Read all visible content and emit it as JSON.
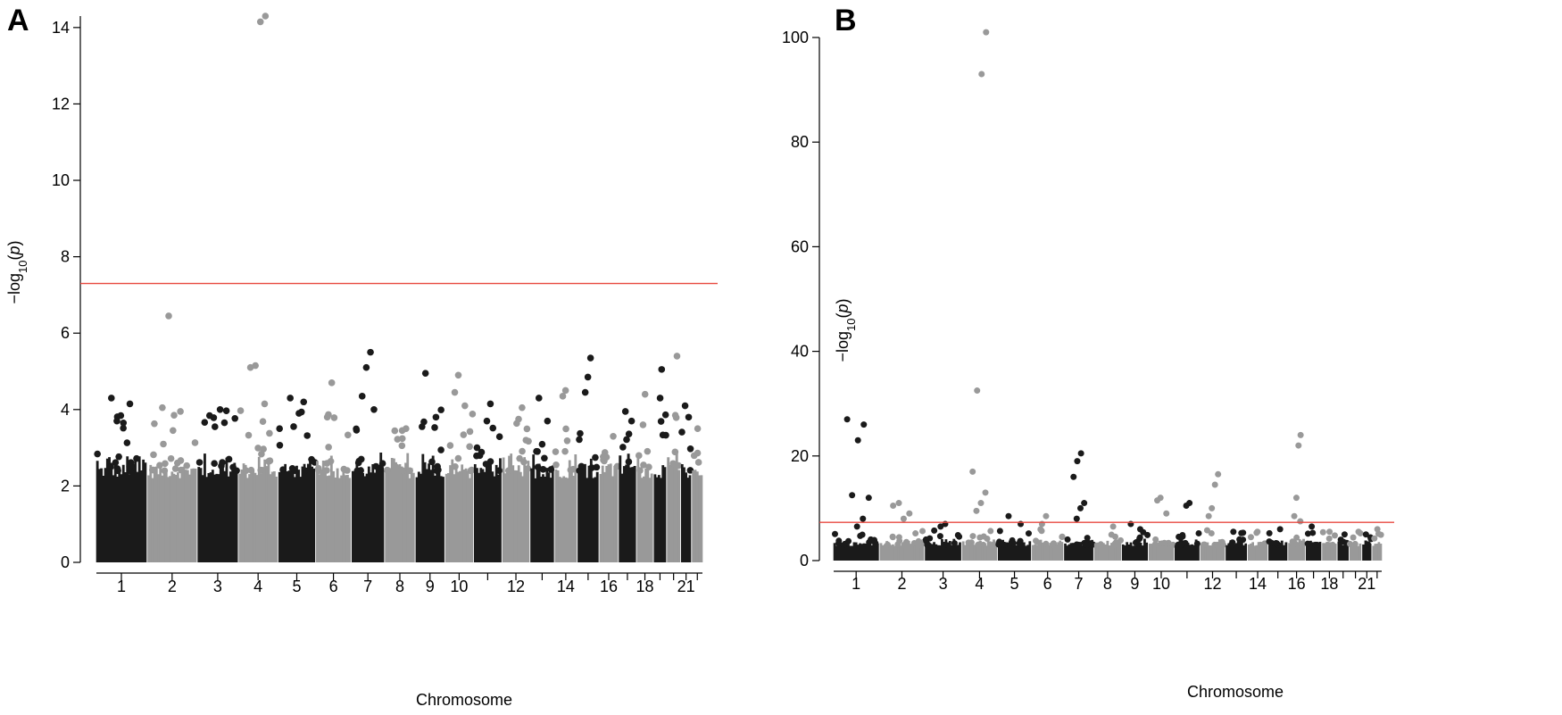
{
  "figure": {
    "panels": [
      "A",
      "B"
    ]
  },
  "chart_data": [
    {
      "panel": "A",
      "type": "scatter",
      "subtype": "manhattan",
      "xlabel": "Chromosome",
      "ylabel": "-log10(p)",
      "ylim": [
        0,
        14.3
      ],
      "yticks": [
        0,
        2,
        4,
        6,
        8,
        10,
        12,
        14
      ],
      "xtick_labels": [
        "1",
        "2",
        "3",
        "4",
        "5",
        "6",
        "7",
        "8",
        "9",
        "10",
        "12",
        "14",
        "16",
        "18",
        "21"
      ],
      "significance_line": 7.3,
      "significance_color": "#e8483f",
      "series_colors": [
        "#1a1a1a",
        "#999999"
      ],
      "grid": false,
      "chromosomes": [
        {
          "chr": "1",
          "max": 4.3,
          "peaks": [
            4.3,
            4.15,
            3.65,
            3.7
          ]
        },
        {
          "chr": "2",
          "max": 6.45,
          "peaks": [
            6.45,
            4.05,
            3.95,
            3.85
          ]
        },
        {
          "chr": "3",
          "max": 4.0,
          "peaks": [
            4.0,
            3.55
          ]
        },
        {
          "chr": "4",
          "max": 14.3,
          "peaks": [
            14.3,
            14.15,
            5.15,
            5.1,
            4.15
          ]
        },
        {
          "chr": "5",
          "max": 4.3,
          "peaks": [
            4.3,
            4.2,
            3.9
          ]
        },
        {
          "chr": "6",
          "max": 4.7,
          "peaks": [
            4.7,
            3.8
          ]
        },
        {
          "chr": "7",
          "max": 5.5,
          "peaks": [
            5.5,
            5.1,
            4.35,
            4.0
          ]
        },
        {
          "chr": "8",
          "max": 3.5,
          "peaks": [
            3.5,
            3.45
          ]
        },
        {
          "chr": "9",
          "max": 4.95,
          "peaks": [
            4.95,
            3.8
          ]
        },
        {
          "chr": "10",
          "max": 4.9,
          "peaks": [
            4.9,
            4.45,
            4.1
          ]
        },
        {
          "chr": "11",
          "max": 4.15,
          "peaks": [
            4.15,
            3.7
          ]
        },
        {
          "chr": "12",
          "max": 4.05,
          "peaks": [
            4.05,
            3.75
          ]
        },
        {
          "chr": "13",
          "max": 4.3,
          "peaks": [
            4.3,
            3.7
          ]
        },
        {
          "chr": "14",
          "max": 4.5,
          "peaks": [
            4.5,
            4.35
          ]
        },
        {
          "chr": "15",
          "max": 5.35,
          "peaks": [
            5.35,
            4.85,
            4.45
          ]
        },
        {
          "chr": "16",
          "max": 3.3,
          "peaks": [
            3.3
          ]
        },
        {
          "chr": "17",
          "max": 3.95,
          "peaks": [
            3.95,
            3.7
          ]
        },
        {
          "chr": "18",
          "max": 4.4,
          "peaks": [
            4.4,
            3.6
          ]
        },
        {
          "chr": "19",
          "max": 5.05,
          "peaks": [
            5.05,
            4.3
          ]
        },
        {
          "chr": "20",
          "max": 5.4,
          "peaks": [
            5.4,
            3.85
          ]
        },
        {
          "chr": "21",
          "max": 4.1,
          "peaks": [
            4.1,
            3.8
          ]
        },
        {
          "chr": "22",
          "max": 3.5,
          "peaks": [
            3.5
          ]
        }
      ]
    },
    {
      "panel": "B",
      "type": "scatter",
      "subtype": "manhattan",
      "xlabel": "Chromosome",
      "ylabel": "-log10(p)",
      "ylim": [
        0,
        100
      ],
      "yticks": [
        0,
        20,
        40,
        60,
        80,
        100
      ],
      "xtick_labels": [
        "1",
        "2",
        "3",
        "4",
        "5",
        "6",
        "7",
        "8",
        "9",
        "10",
        "12",
        "14",
        "16",
        "18",
        "21"
      ],
      "significance_line": 7.3,
      "significance_color": "#e8483f",
      "series_colors": [
        "#1a1a1a",
        "#999999"
      ],
      "grid": false,
      "chromosomes": [
        {
          "chr": "1",
          "max": 27.0,
          "peaks": [
            27.0,
            26.0,
            23.0,
            12.5,
            12.0,
            8.0,
            6.5
          ]
        },
        {
          "chr": "2",
          "max": 11.0,
          "peaks": [
            11.0,
            10.5,
            9.0,
            8.0
          ]
        },
        {
          "chr": "3",
          "max": 7.0,
          "peaks": [
            7.0,
            6.5
          ]
        },
        {
          "chr": "4",
          "max": 101.0,
          "peaks": [
            101.0,
            93.0,
            32.5,
            17.0,
            13.0,
            11.0,
            9.5
          ]
        },
        {
          "chr": "5",
          "max": 8.5,
          "peaks": [
            8.5,
            7.0
          ]
        },
        {
          "chr": "6",
          "max": 8.5,
          "peaks": [
            8.5,
            7.0
          ]
        },
        {
          "chr": "7",
          "max": 20.5,
          "peaks": [
            20.5,
            19.0,
            16.0,
            11.0,
            10.0,
            8.0
          ]
        },
        {
          "chr": "8",
          "max": 6.5,
          "peaks": [
            6.5
          ]
        },
        {
          "chr": "9",
          "max": 7.0,
          "peaks": [
            7.0,
            6.0
          ]
        },
        {
          "chr": "10",
          "max": 12.0,
          "peaks": [
            12.0,
            11.5,
            9.0
          ]
        },
        {
          "chr": "11",
          "max": 11.0,
          "peaks": [
            11.0,
            10.5
          ]
        },
        {
          "chr": "12",
          "max": 16.5,
          "peaks": [
            16.5,
            14.5,
            10.0,
            8.5
          ]
        },
        {
          "chr": "13",
          "max": 5.5,
          "peaks": [
            5.5
          ]
        },
        {
          "chr": "14",
          "max": 5.5,
          "peaks": [
            5.5
          ]
        },
        {
          "chr": "15",
          "max": 6.0,
          "peaks": [
            6.0
          ]
        },
        {
          "chr": "16",
          "max": 24.0,
          "peaks": [
            24.0,
            22.0,
            12.0,
            8.5,
            7.5
          ]
        },
        {
          "chr": "17",
          "max": 6.5,
          "peaks": [
            6.5
          ]
        },
        {
          "chr": "18",
          "max": 5.5,
          "peaks": [
            5.5
          ]
        },
        {
          "chr": "19",
          "max": 5.0,
          "peaks": [
            5.0
          ]
        },
        {
          "chr": "20",
          "max": 5.5,
          "peaks": [
            5.5
          ]
        },
        {
          "chr": "21",
          "max": 5.0,
          "peaks": [
            5.0
          ]
        },
        {
          "chr": "22",
          "max": 6.0,
          "peaks": [
            6.0
          ]
        }
      ]
    }
  ]
}
